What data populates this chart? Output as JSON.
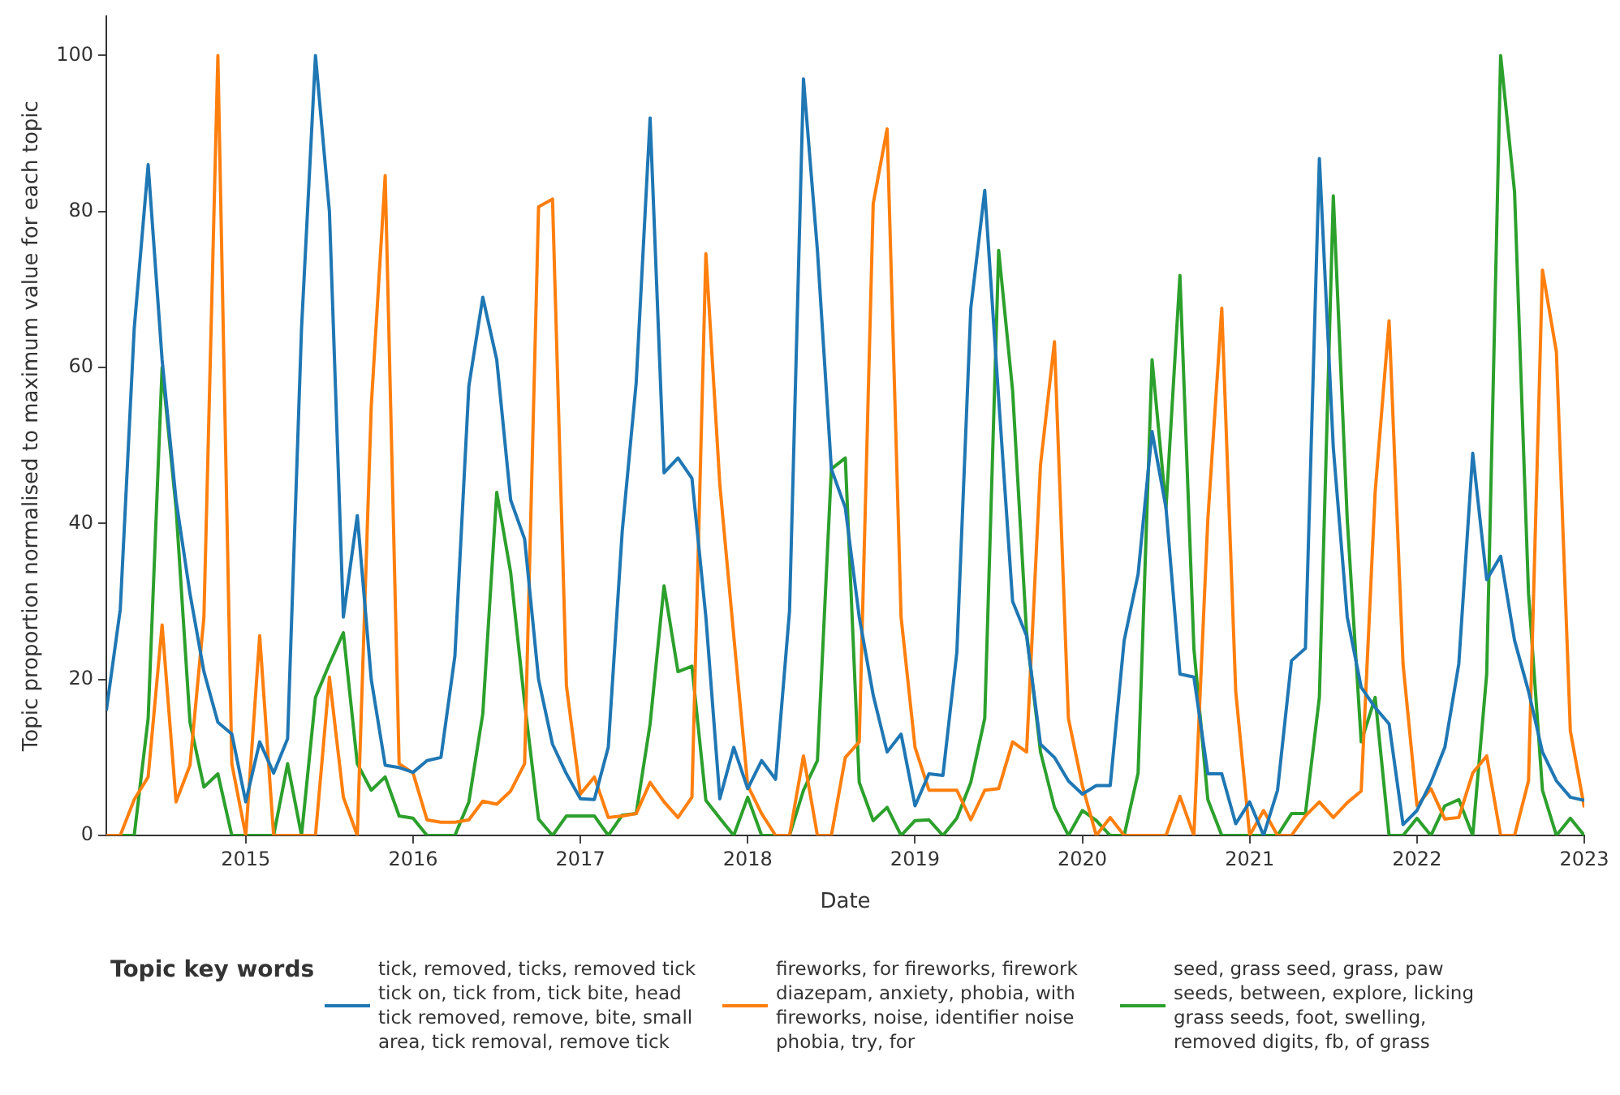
{
  "chart_data": {
    "type": "line",
    "xlabel": "Date",
    "ylabel": "Topic proportion normalised to maximum value for each topic",
    "legend_title": "Topic key words",
    "legend": "bottom",
    "grid": false,
    "marker": "none",
    "line_style": "solid",
    "xlim": [
      "2014-03",
      "2023-01"
    ],
    "xticks": [
      "2015",
      "2016",
      "2017",
      "2018",
      "2019",
      "2020",
      "2021",
      "2022",
      "2023"
    ],
    "ylim": [
      0,
      105
    ],
    "yticks": [
      0,
      20,
      40,
      60,
      80,
      100
    ],
    "x": [
      "2014-03",
      "2014-04",
      "2014-05",
      "2014-06",
      "2014-07",
      "2014-08",
      "2014-09",
      "2014-10",
      "2014-11",
      "2014-12",
      "2015-01",
      "2015-02",
      "2015-03",
      "2015-04",
      "2015-05",
      "2015-06",
      "2015-07",
      "2015-08",
      "2015-09",
      "2015-10",
      "2015-11",
      "2015-12",
      "2016-01",
      "2016-02",
      "2016-03",
      "2016-04",
      "2016-05",
      "2016-06",
      "2016-07",
      "2016-08",
      "2016-09",
      "2016-10",
      "2016-11",
      "2016-12",
      "2017-01",
      "2017-02",
      "2017-03",
      "2017-04",
      "2017-05",
      "2017-06",
      "2017-07",
      "2017-08",
      "2017-09",
      "2017-10",
      "2017-11",
      "2017-12",
      "2018-01",
      "2018-02",
      "2018-03",
      "2018-04",
      "2018-05",
      "2018-06",
      "2018-07",
      "2018-08",
      "2018-09",
      "2018-10",
      "2018-11",
      "2018-12",
      "2019-01",
      "2019-02",
      "2019-03",
      "2019-04",
      "2019-05",
      "2019-06",
      "2019-07",
      "2019-08",
      "2019-09",
      "2019-10",
      "2019-11",
      "2019-12",
      "2020-01",
      "2020-02",
      "2020-03",
      "2020-04",
      "2020-05",
      "2020-06",
      "2020-07",
      "2020-08",
      "2020-09",
      "2020-10",
      "2020-11",
      "2020-12",
      "2021-01",
      "2021-02",
      "2021-03",
      "2021-04",
      "2021-05",
      "2021-06",
      "2021-07",
      "2021-08",
      "2021-09",
      "2021-10",
      "2021-11",
      "2021-12",
      "2022-01",
      "2022-02",
      "2022-03",
      "2022-04",
      "2022-05",
      "2022-06",
      "2022-07",
      "2022-08",
      "2022-09",
      "2022-10",
      "2022-11",
      "2022-12",
      "2023-01"
    ],
    "series": [
      {
        "name": "tick, removed, ticks, removed tick tick on, tick from, tick bite, head tick removed, remove, bite, small area, tick removal, remove tick",
        "color": "#1f77b4",
        "values": [
          16,
          29,
          65,
          86,
          61,
          43,
          31,
          21,
          14.5,
          13,
          4.3,
          12,
          8,
          12.4,
          65,
          100,
          80,
          28,
          41,
          20,
          9,
          8.7,
          8.1,
          9.6,
          10,
          23,
          57.6,
          69,
          61,
          43,
          38,
          20,
          11.7,
          7.9,
          4.7,
          4.6,
          11.3,
          39,
          58,
          92,
          46.5,
          48.4,
          45.8,
          28,
          4.7,
          11.3,
          6,
          9.6,
          7.2,
          28.8,
          97,
          75,
          47,
          42,
          28,
          18,
          10.7,
          13,
          3.8,
          7.9,
          7.7,
          23.5,
          67.6,
          82.7,
          56,
          30,
          25.6,
          11.7,
          10,
          7,
          5.3,
          6.4,
          6.4,
          25,
          33.5,
          51.8,
          42,
          20.7,
          20.3,
          7.9,
          7.9,
          1.5,
          4.3,
          0,
          5.8,
          22.4,
          24,
          86.8,
          49.7,
          28,
          19,
          16.4,
          14.3,
          1.4,
          3.2,
          6.8,
          11.3,
          22,
          49,
          32.8,
          35.8,
          25,
          18.5,
          10.7,
          7,
          4.9,
          4.5
        ]
      },
      {
        "name": "fireworks, for fireworks, firework diazepam, anxiety, phobia, with fireworks, noise, identifier noise phobia, try, for",
        "color": "#ff7f0e",
        "values": [
          0,
          0,
          4.6,
          7.5,
          27,
          4.3,
          9,
          28,
          100,
          9.2,
          0,
          25.6,
          0,
          0,
          0,
          0,
          20.3,
          4.9,
          0,
          55,
          84.6,
          9.2,
          8,
          2,
          1.7,
          1.7,
          2,
          4.4,
          4,
          5.7,
          9.2,
          80.6,
          81.6,
          19.2,
          5.3,
          7.5,
          2.3,
          2.5,
          2.8,
          6.8,
          4.3,
          2.3,
          4.9,
          74.6,
          45,
          25.6,
          6.4,
          2.8,
          0,
          0,
          10.2,
          0,
          0,
          10,
          12,
          81,
          90.6,
          28,
          11.3,
          5.8,
          5.8,
          5.8,
          2,
          5.8,
          6,
          12,
          10.7,
          47.5,
          63.3,
          15,
          6.4,
          0,
          2.3,
          0,
          0,
          0,
          0,
          5,
          0,
          40.5,
          67.6,
          18.5,
          0,
          3.2,
          0,
          0,
          2.5,
          4.3,
          2.3,
          4.2,
          5.7,
          44,
          66,
          22,
          3.8,
          6,
          2.1,
          2.3,
          8,
          10.2,
          0,
          0,
          7,
          72.5,
          62,
          13.4,
          3.6
        ]
      },
      {
        "name": "seed, grass seed, grass, paw seeds, between, explore, licking grass seeds, foot, swelling, removed digits, fb, of grass",
        "color": "#2ca02c",
        "values": [
          0,
          0,
          0,
          15,
          60,
          42,
          14.5,
          6.2,
          7.9,
          0,
          0,
          0,
          0,
          9.2,
          0,
          17.7,
          22,
          26,
          9.2,
          5.8,
          7.5,
          2.5,
          2.2,
          0,
          0,
          0,
          4.3,
          15.6,
          44,
          33.7,
          17,
          2.1,
          0,
          2.5,
          2.5,
          2.5,
          0,
          2.6,
          2.8,
          14.3,
          32,
          21,
          21.7,
          4.5,
          2.2,
          0,
          4.9,
          0,
          0,
          0,
          5.8,
          9.6,
          47,
          48.4,
          6.8,
          1.9,
          3.6,
          0,
          1.9,
          2,
          0,
          2.2,
          6.8,
          15,
          75,
          57,
          26,
          10.7,
          3.6,
          0,
          3.2,
          1.9,
          0,
          0,
          8,
          61,
          42,
          71.8,
          24,
          4.6,
          0,
          0,
          0,
          0,
          0,
          2.8,
          2.8,
          17.7,
          82,
          40.5,
          12,
          17.7,
          0,
          0,
          2.2,
          0,
          3.8,
          4.6,
          0,
          20.7,
          100,
          82.5,
          31,
          5.8,
          0,
          2.2,
          0
        ]
      }
    ]
  }
}
